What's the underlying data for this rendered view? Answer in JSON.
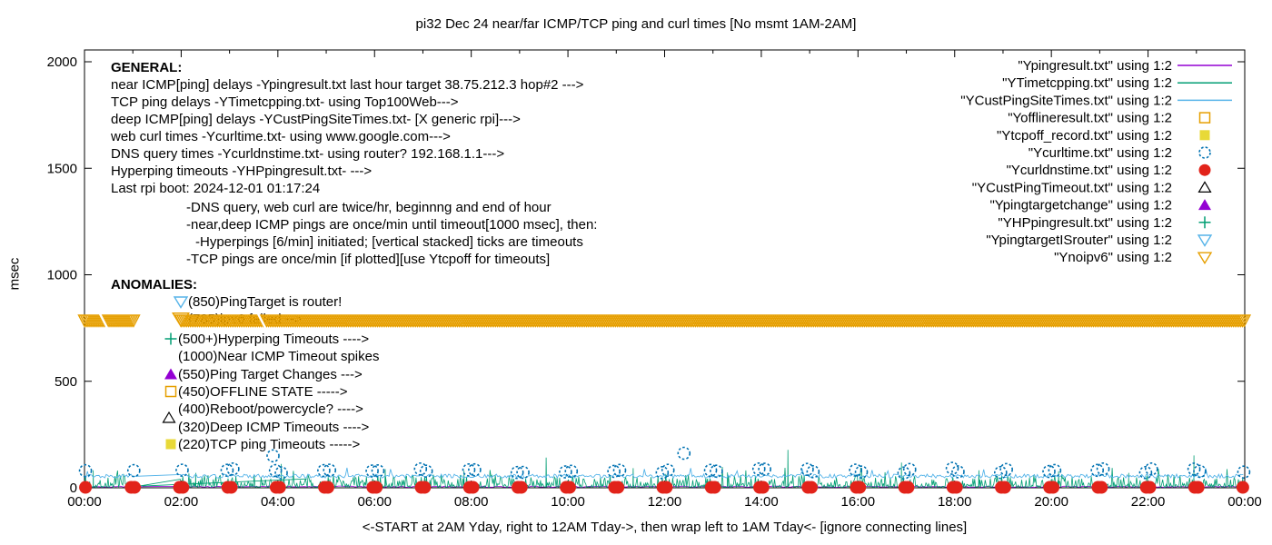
{
  "title": "pi32 Dec 24  near/far ICMP/TCP ping and curl times [No msmt 1AM-2AM]",
  "axes": {
    "ylabel": "msec",
    "xlabel": "<-START at 2AM Yday, right to 12AM Tday->, then wrap left to 1AM Tday<- [ignore connecting lines]",
    "yticks": [
      0,
      500,
      1000,
      1500,
      2000
    ],
    "xticks": [
      "00:00",
      "02:00",
      "04:00",
      "06:00",
      "08:00",
      "10:00",
      "12:00",
      "14:00",
      "16:00",
      "18:00",
      "20:00",
      "22:00",
      "00:00"
    ],
    "xlim_hours": [
      0,
      24
    ],
    "ylim_msec": [
      0,
      2000
    ]
  },
  "general": {
    "heading": "GENERAL:",
    "lines": [
      "near ICMP[ping] delays -Ypingresult.txt last hour target 38.75.212.3 hop#2 --->",
      "TCP ping delays -YTimetcpping.txt- using Top100Web--->",
      "deep ICMP[ping] delays -YCustPingSiteTimes.txt- [X generic rpi]--->",
      "web curl times -Ycurltime.txt- using www.google.com--->",
      "DNS query times -Ycurldnstime.txt- using router? 192.168.1.1--->",
      "Hyperping timeouts -YHPpingresult.txt- --->",
      "Last rpi boot: 2024-12-01 01:17:24"
    ],
    "sub_lines": [
      "-DNS query, web curl are twice/hr, beginnng and end of hour",
      "-near,deep ICMP pings are once/min until timeout[1000 msec], then:",
      "-Hyperpings [6/min] initiated; [vertical stacked] ticks are timeouts",
      "-TCP pings are once/min [if plotted][use Ytcpoff for timeouts]"
    ]
  },
  "anomalies": {
    "heading": "ANOMALIES:",
    "items": [
      {
        "text": "(850)PingTarget is router!",
        "marker": "triangle-down-open",
        "color": "#56b4e9"
      },
      {
        "text": "(785)ipv6 failed -->",
        "marker": "triangle-down-open",
        "color": "#e69f00"
      },
      {
        "text": "(500+)Hyperping Timeouts ---->",
        "marker": "plus",
        "color": "#009e73"
      },
      {
        "text": "(1000)Near ICMP Timeout spikes",
        "marker": null,
        "color": "#000000"
      },
      {
        "text": "(550)Ping Target Changes --->",
        "marker": "triangle-filled",
        "color": "#9400d3"
      },
      {
        "text": "(450)OFFLINE STATE ----->",
        "marker": "square-open",
        "color": "#e69f00"
      },
      {
        "text": "(400)Reboot/powercycle? ---->",
        "marker": null,
        "color": "#000000"
      },
      {
        "text": "(320)Deep ICMP Timeouts ---->",
        "marker": "triangle-open",
        "color": "#000000"
      },
      {
        "text": "(220)TCP ping Timeouts ----->",
        "marker": "square-filled",
        "color": "#e8d938"
      }
    ]
  },
  "legend": [
    {
      "label": "\"Ypingresult.txt\" using 1:2",
      "marker": "line",
      "color": "#9400d3"
    },
    {
      "label": "\"YTimetcpping.txt\" using 1:2",
      "marker": "line",
      "color": "#009e73"
    },
    {
      "label": "\"YCustPingSiteTimes.txt\" using 1:2",
      "marker": "line",
      "color": "#56b4e9"
    },
    {
      "label": "\"Yofflineresult.txt\" using 1:2",
      "marker": "square-open",
      "color": "#e69f00"
    },
    {
      "label": "\"Ytcpoff_record.txt\" using 1:2",
      "marker": "square-filled",
      "color": "#e8d938"
    },
    {
      "label": "\"Ycurltime.txt\" using 1:2",
      "marker": "circle-open",
      "color": "#0072b2"
    },
    {
      "label": "\"Ycurldnstime.txt\" using 1:2",
      "marker": "circle-filled",
      "color": "#e2231a"
    },
    {
      "label": "\"YCustPingTimeout.txt\" using 1:2",
      "marker": "triangle-open",
      "color": "#000000"
    },
    {
      "label": "\"Ypingtargetchange\" using 1:2",
      "marker": "triangle-filled",
      "color": "#9400d3"
    },
    {
      "label": "\"YHPpingresult.txt\" using 1:2",
      "marker": "plus",
      "color": "#009e73"
    },
    {
      "label": "\"YpingtargetISrouter\" using 1:2",
      "marker": "triangle-down-open",
      "color": "#56b4e9"
    },
    {
      "label": "\"Ynoipv6\" using 1:2",
      "marker": "triangle-down-open",
      "color": "#e69f00"
    }
  ],
  "chart_data": {
    "type": "line",
    "x_unit": "hours_of_day",
    "no_measurement_gap_hours": [
      1,
      2
    ],
    "series": [
      {
        "name": "Ypingresult near ICMP delay",
        "style": "line",
        "color": "#9400d3",
        "baseline_msec": [
          2,
          8
        ]
      },
      {
        "name": "YTimetcpping TCP ping delay",
        "style": "line",
        "color": "#009e73",
        "baseline_msec": [
          3,
          58
        ],
        "spikes": [
          [
            0.18,
            82
          ],
          [
            2.3,
            70
          ],
          [
            4.07,
            112
          ],
          [
            6.22,
            88
          ],
          [
            7.85,
            80
          ],
          [
            9.55,
            142
          ],
          [
            11.35,
            92
          ],
          [
            13.3,
            72
          ],
          [
            14.55,
            178
          ],
          [
            16.9,
            118
          ],
          [
            18.5,
            82
          ],
          [
            20.15,
            78
          ],
          [
            21.6,
            70
          ],
          [
            22.95,
            152
          ]
        ],
        "gap_connector": [
          [
            1.2,
            8
          ],
          [
            4.6,
            42
          ]
        ]
      },
      {
        "name": "YCustPingSiteTimes deep ICMP delay",
        "style": "line",
        "color": "#56b4e9",
        "baseline_msec": [
          46,
          64
        ]
      },
      {
        "name": "Ycurltime web curl time",
        "style": "scatter-circle-open",
        "color": "#0072b2",
        "typical_msec": [
          68,
          92
        ],
        "hourly_pairs": true,
        "single_hours": [
          0,
          1,
          2
        ],
        "outliers": [
          [
            3.9,
            150
          ],
          [
            12.4,
            162
          ]
        ]
      },
      {
        "name": "Ycurldnstime DNS query time",
        "style": "scatter-circle-filled",
        "color": "#e2231a",
        "value_msec": 2,
        "hourly_pairs": true
      },
      {
        "name": "Ynoipv6 marker band",
        "style": "band-triangle-down",
        "color": "#e69f00",
        "value_msec": 785,
        "segments_hours": [
          [
            0,
            1.02
          ],
          [
            2.0,
            24
          ]
        ]
      }
    ]
  }
}
